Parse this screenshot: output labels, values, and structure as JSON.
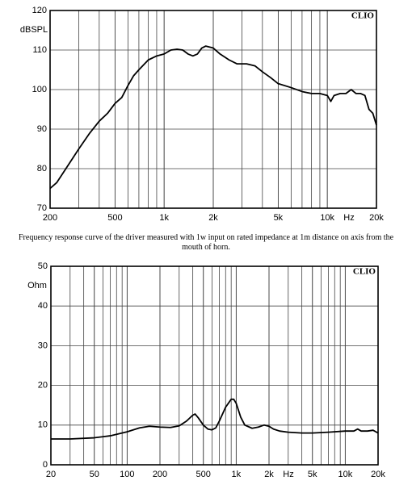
{
  "chart_data": [
    {
      "type": "line",
      "y_label": "dBSPL",
      "x_label": "Hz",
      "watermark": "CLIO",
      "caption": "Frequency response curve of the driver measured with 1w input on rated impedance at 1m distance on axis from the mouth of horn.",
      "xscale": "log",
      "xlim": [
        200,
        20000
      ],
      "ylim": [
        70,
        120
      ],
      "grid": true,
      "xticks": [
        200,
        500,
        {
          "value": 1000,
          "label": "1k"
        },
        {
          "value": 2000,
          "label": "2k"
        },
        {
          "value": 5000,
          "label": "5k"
        },
        {
          "value": 10000,
          "label": "10k"
        },
        {
          "value": 20000,
          "label": "20k"
        }
      ],
      "yticks": [
        70,
        80,
        90,
        100,
        110,
        120
      ],
      "color": "#000000",
      "x": [
        200,
        220,
        250,
        300,
        350,
        400,
        450,
        500,
        550,
        600,
        650,
        700,
        800,
        900,
        1000,
        1100,
        1200,
        1300,
        1400,
        1500,
        1600,
        1700,
        1800,
        2000,
        2200,
        2500,
        2800,
        3200,
        3600,
        4000,
        4500,
        5000,
        6000,
        7000,
        8000,
        9000,
        10000,
        10500,
        11000,
        12000,
        13000,
        14000,
        15000,
        16000,
        17000,
        18000,
        19000,
        20000
      ],
      "values": [
        75,
        76.5,
        80,
        85,
        89,
        92,
        94,
        96.5,
        98,
        101,
        103.5,
        105,
        107.5,
        108.5,
        109,
        110,
        110.2,
        110,
        109,
        108.5,
        109,
        110.5,
        111,
        110.5,
        109,
        107.5,
        106.5,
        106.5,
        106,
        104.5,
        103,
        101.5,
        100.5,
        99.5,
        99,
        99,
        98.5,
        97,
        98.5,
        99,
        99,
        100,
        99,
        99,
        98.5,
        95,
        94,
        91
      ]
    },
    {
      "type": "line",
      "y_label": "Ohm",
      "x_label": "Hz",
      "watermark": "CLIO",
      "xscale": "log",
      "xlim": [
        20,
        20000
      ],
      "ylim": [
        0,
        50
      ],
      "grid": true,
      "xticks": [
        20,
        50,
        100,
        200,
        500,
        {
          "value": 1000,
          "label": "1k"
        },
        {
          "value": 2000,
          "label": "2k"
        },
        {
          "value": 5000,
          "label": "5k"
        },
        {
          "value": 10000,
          "label": "10k"
        },
        {
          "value": 20000,
          "label": "20k"
        }
      ],
      "yticks": [
        0,
        10,
        20,
        30,
        40,
        50
      ],
      "color": "#000000",
      "x": [
        20,
        30,
        50,
        70,
        100,
        130,
        160,
        200,
        250,
        300,
        350,
        400,
        420,
        450,
        500,
        550,
        600,
        650,
        700,
        800,
        900,
        950,
        1000,
        1100,
        1200,
        1400,
        1600,
        1800,
        2000,
        2200,
        2500,
        3000,
        4000,
        5000,
        7000,
        10000,
        12000,
        13000,
        14000,
        16000,
        18000,
        20000
      ],
      "values": [
        6.5,
        6.5,
        6.8,
        7.3,
        8.3,
        9.3,
        9.7,
        9.5,
        9.4,
        9.8,
        11,
        12.5,
        12.8,
        11.8,
        10,
        9,
        8.8,
        9.3,
        11,
        14.5,
        16.5,
        16.5,
        15.5,
        12,
        10,
        9.2,
        9.5,
        10,
        9.7,
        9,
        8.5,
        8.2,
        8,
        8,
        8.2,
        8.5,
        8.5,
        9,
        8.5,
        8.5,
        8.7,
        8
      ]
    }
  ]
}
